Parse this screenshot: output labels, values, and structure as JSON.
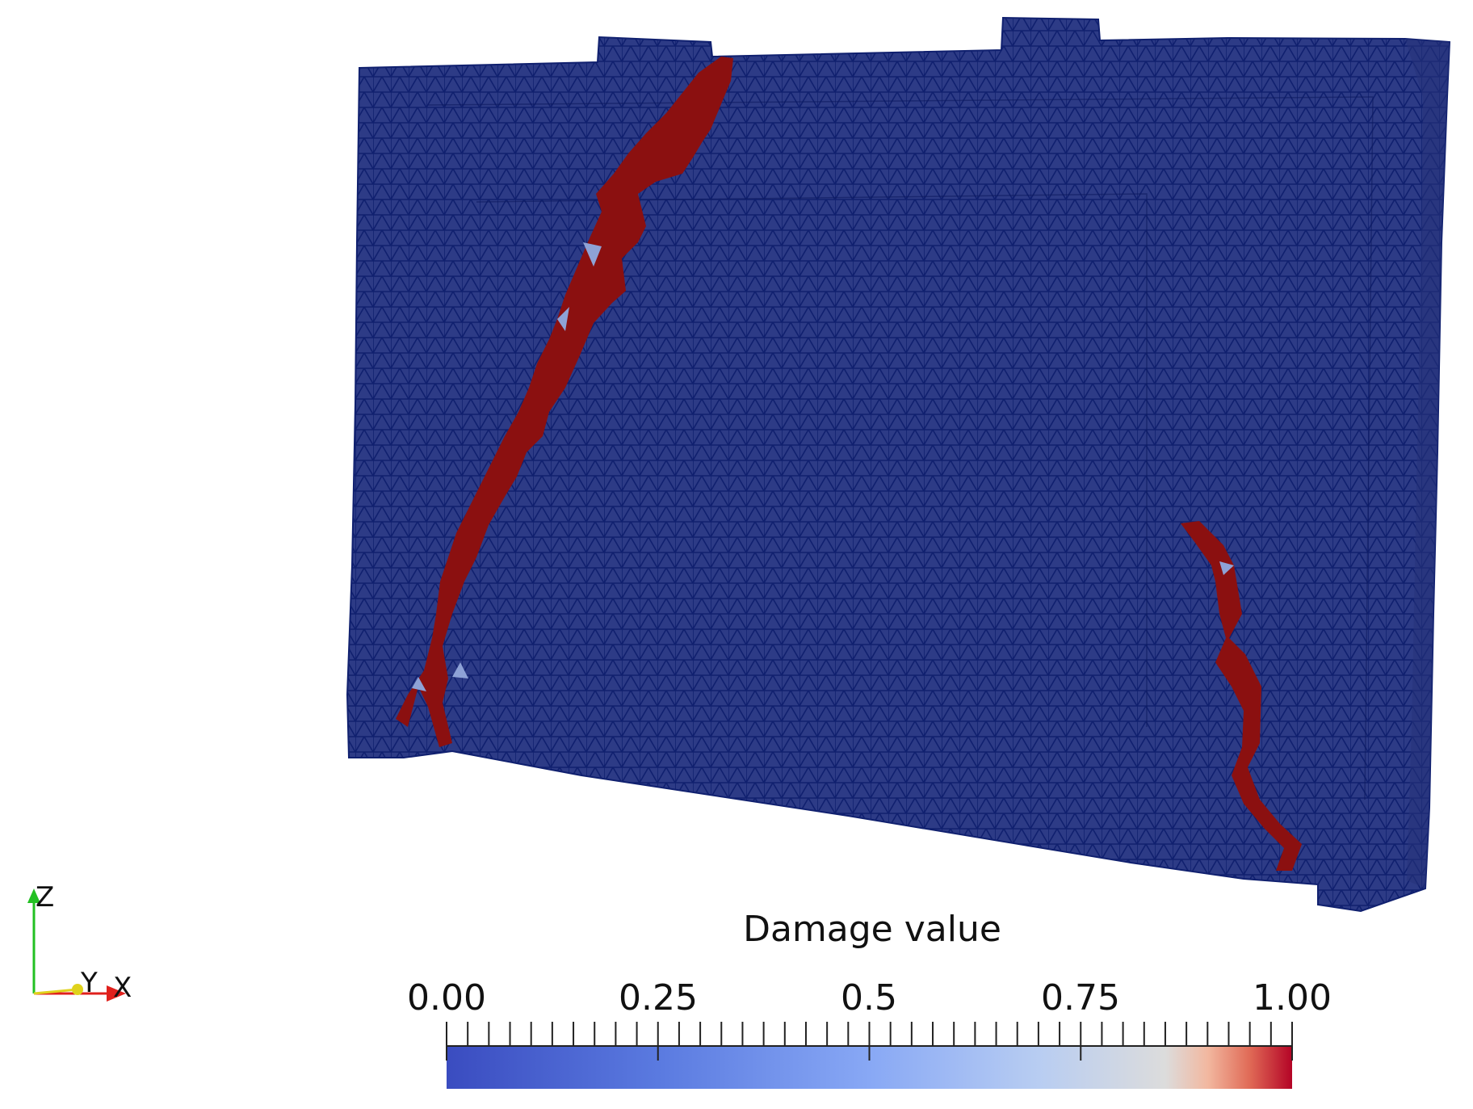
{
  "axes": {
    "z": "Z",
    "y": "Y",
    "x": "X"
  },
  "legend": {
    "title": "Damage value",
    "ticks": [
      "0.00",
      "0.25",
      "0.5",
      "0.75",
      "1.00"
    ],
    "range": [
      0,
      1
    ]
  },
  "colors": {
    "background": "#ffffff",
    "mesh_fill": "#2d3b86",
    "mesh_lines": "#10206f",
    "damage": "#8b1010",
    "partial_damage": "#8ea2d6",
    "axis_x": "#e0201c",
    "axis_y": "#e0d21c",
    "axis_z": "#22c022"
  }
}
